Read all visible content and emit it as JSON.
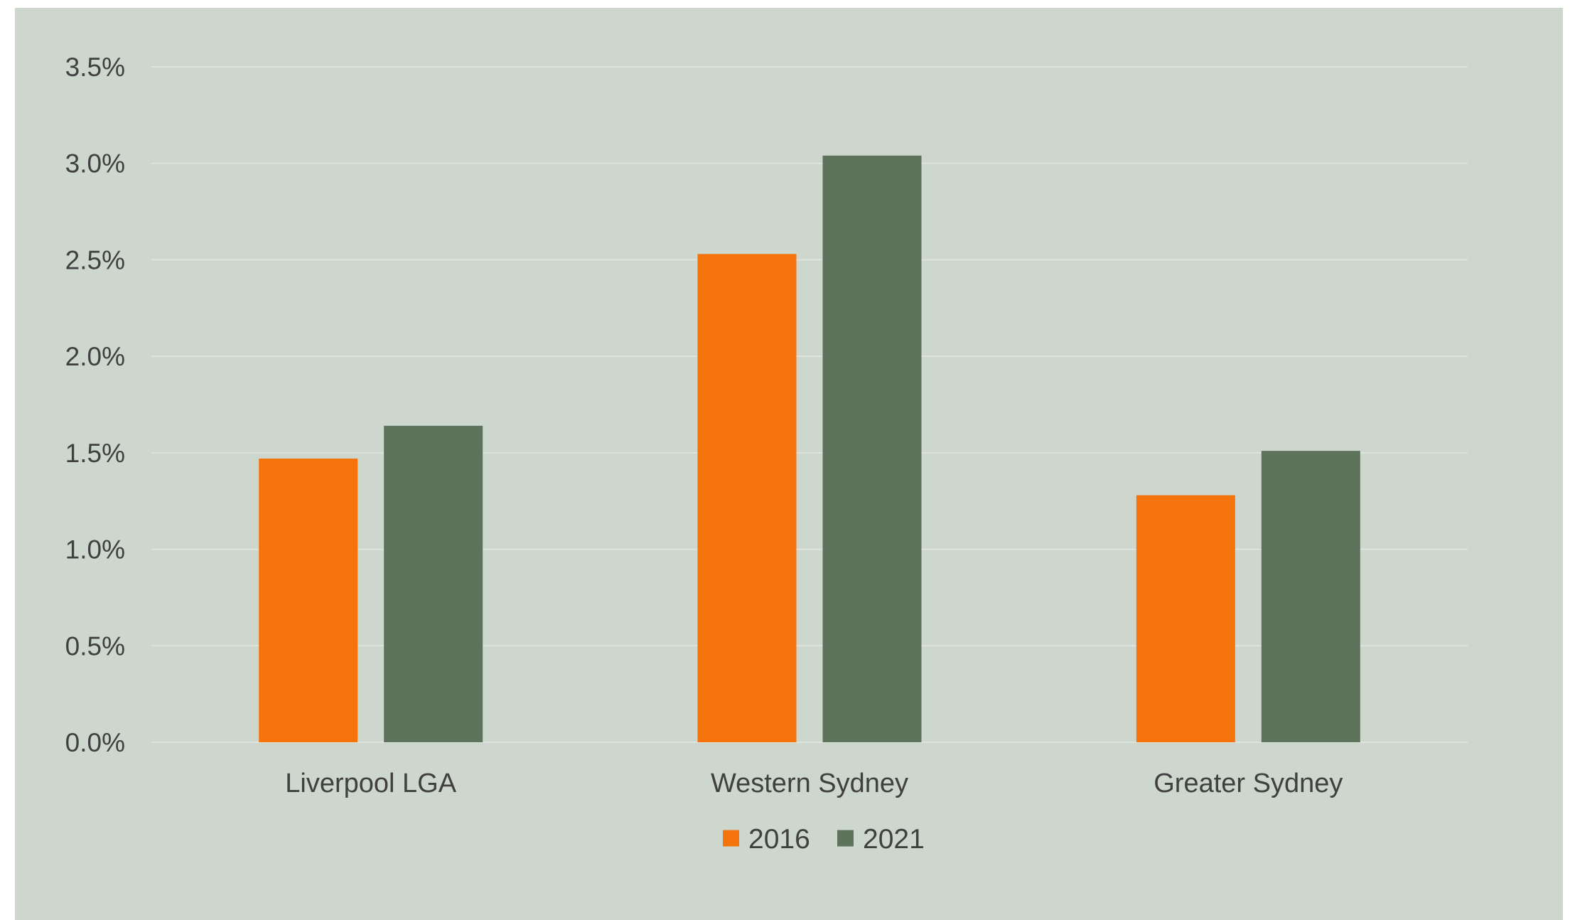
{
  "chart_data": {
    "type": "bar",
    "categories": [
      "Liverpool LGA",
      "Western Sydney",
      "Greater Sydney"
    ],
    "series": [
      {
        "name": "2016",
        "values": [
          1.47,
          2.53,
          1.28
        ],
        "color": "#F4730B"
      },
      {
        "name": "2021",
        "values": [
          1.64,
          3.04,
          1.51
        ],
        "color": "#5D735C"
      }
    ],
    "title": "",
    "xlabel": "",
    "ylabel": "",
    "ylim": [
      0,
      3.5
    ],
    "y_ticks": [
      "0.0%",
      "0.5%",
      "1.0%",
      "1.5%",
      "2.0%",
      "2.5%",
      "3.0%",
      "3.5%"
    ],
    "y_tick_values": [
      0,
      0.5,
      1.0,
      1.5,
      2.0,
      2.5,
      3.0,
      3.5
    ],
    "grid": true,
    "legend_position": "bottom"
  },
  "colors": {
    "background": "#CDD7CE",
    "gridline": "#DDE4DE",
    "text": "#404040"
  }
}
